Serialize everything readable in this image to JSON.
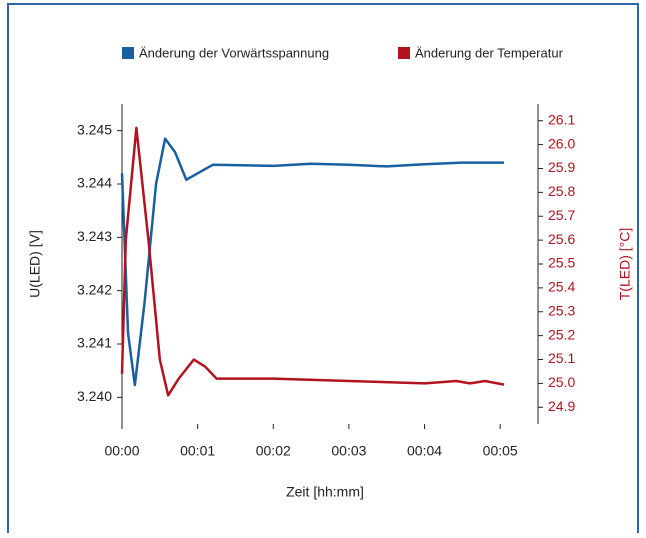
{
  "chart_data": {
    "type": "line",
    "xlabel": "Zeit [hh:mm]",
    "ylabel": "U(LED) [V]",
    "y2label": "T(LED) [°C]",
    "xlim": [
      0,
      5.5
    ],
    "xticks": [
      {
        "value": 0,
        "label": "00:00"
      },
      {
        "value": 1,
        "label": "00:01"
      },
      {
        "value": 2,
        "label": "00:02"
      },
      {
        "value": 3,
        "label": "00:03"
      },
      {
        "value": 4,
        "label": "00:04"
      },
      {
        "value": 5,
        "label": "00:05"
      }
    ],
    "ylim": [
      3.2395,
      3.2455
    ],
    "yticks": [
      {
        "value": 3.24,
        "label": "3.240"
      },
      3.241,
      3.242,
      3.243,
      3.244,
      3.245
    ],
    "y2lim": [
      24.83,
      26.17
    ],
    "y2ticks": [
      24.9,
      {
        "value": 25,
        "label": "25.0"
      },
      25.1,
      25.2,
      25.3,
      25.4,
      25.5,
      25.6,
      25.7,
      25.8,
      25.9,
      {
        "value": 26,
        "label": "26.0"
      },
      26.1
    ],
    "legend": "top",
    "series": [
      {
        "name": "Änderung der Vorwärtsspannung",
        "color": "#1a5fa0",
        "x": [
          0,
          0.08,
          0.17,
          0.3,
          0.45,
          0.57,
          0.7,
          0.85,
          1.0,
          1.2,
          2.0,
          2.5,
          3.0,
          3.5,
          4.0,
          4.5,
          5.05
        ],
        "values": [
          3.2442,
          3.2412,
          3.24023,
          3.2418,
          3.244,
          3.24485,
          3.2446,
          3.24408,
          3.2442,
          3.24436,
          3.24434,
          3.24438,
          3.24436,
          3.24433,
          3.24437,
          3.2444,
          3.2444
        ]
      },
      {
        "name": "Änderung der Temperatur",
        "color": "#b3121f",
        "axis": "y2",
        "x": [
          0,
          0.05,
          0.19,
          0.35,
          0.5,
          0.61,
          0.75,
          0.95,
          1.1,
          1.25,
          2.0,
          3.0,
          4.0,
          4.42,
          4.6,
          4.8,
          5.05
        ],
        "values": [
          25.04,
          25.6,
          26.07,
          25.6,
          25.1,
          24.95,
          25.02,
          25.1,
          25.07,
          25.02,
          25.02,
          25.01,
          25.0,
          25.01,
          25.0,
          25.01,
          24.995
        ]
      }
    ]
  }
}
